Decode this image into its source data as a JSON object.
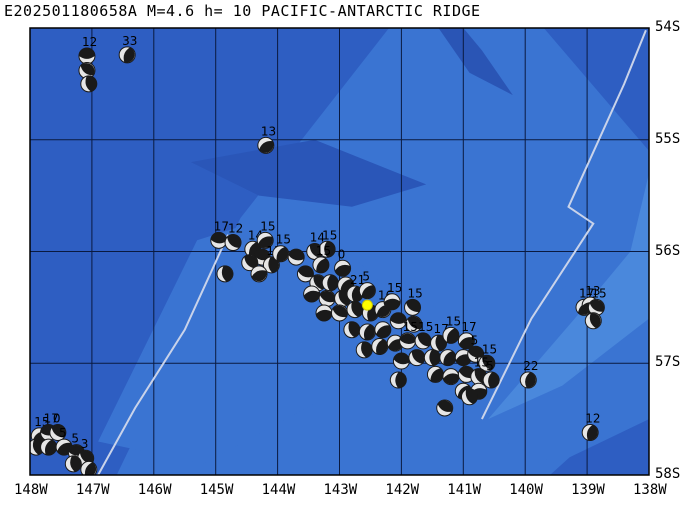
{
  "title": "E202501180658A M=4.6 h= 10 PACIFIC-ANTARCTIC RIDGE",
  "map": {
    "lon_range": [
      -148,
      -138
    ],
    "lat_range": [
      -58,
      -54
    ],
    "x_ticks": [
      "148W",
      "147W",
      "146W",
      "145W",
      "144W",
      "143W",
      "142W",
      "141W",
      "140W",
      "139W",
      "138W"
    ],
    "y_ticks": [
      "54S",
      "55S",
      "56S",
      "57S",
      "58S"
    ],
    "colors": {
      "deep_ocean": "#2e5ec2",
      "mid_ocean": "#3a74d2",
      "shallow_ridge": "#4a88dc",
      "grid": "#0a1a40",
      "plate_boundary": "#c9d3ea",
      "event_marker": "#ffff00",
      "mech_dark": "#1a1a1a",
      "mech_light": "#e6e6e6"
    },
    "event": {
      "lon": -142.55,
      "lat": -56.48,
      "label": "E202501180658A"
    },
    "mechanisms": [
      {
        "lon": -147.08,
        "lat": -54.25,
        "label": "12"
      },
      {
        "lon": -147.08,
        "lat": -54.38,
        "label": ""
      },
      {
        "lon": -147.05,
        "lat": -54.5,
        "label": ""
      },
      {
        "lon": -146.43,
        "lat": -54.24,
        "label": "33"
      },
      {
        "lon": -144.19,
        "lat": -55.05,
        "label": "13"
      },
      {
        "lon": -144.95,
        "lat": -55.9,
        "label": "17"
      },
      {
        "lon": -144.72,
        "lat": -55.92,
        "label": "12"
      },
      {
        "lon": -144.85,
        "lat": -56.2,
        "label": ""
      },
      {
        "lon": -144.4,
        "lat": -55.98,
        "label": "14"
      },
      {
        "lon": -144.2,
        "lat": -55.9,
        "label": "15"
      },
      {
        "lon": -144.25,
        "lat": -56.05,
        "label": ""
      },
      {
        "lon": -144.45,
        "lat": -56.1,
        "label": ""
      },
      {
        "lon": -144.1,
        "lat": -56.12,
        "label": "15"
      },
      {
        "lon": -143.95,
        "lat": -56.02,
        "label": "15"
      },
      {
        "lon": -144.3,
        "lat": -56.2,
        "label": ""
      },
      {
        "lon": -143.7,
        "lat": -56.05,
        "label": ""
      },
      {
        "lon": -143.4,
        "lat": -56.0,
        "label": "14"
      },
      {
        "lon": -143.2,
        "lat": -55.98,
        "label": "15"
      },
      {
        "lon": -143.3,
        "lat": -56.12,
        "label": "15"
      },
      {
        "lon": -142.95,
        "lat": -56.15,
        "label": "0"
      },
      {
        "lon": -143.55,
        "lat": -56.2,
        "label": ""
      },
      {
        "lon": -143.35,
        "lat": -56.28,
        "label": ""
      },
      {
        "lon": -143.15,
        "lat": -56.28,
        "label": ""
      },
      {
        "lon": -142.9,
        "lat": -56.3,
        "label": ""
      },
      {
        "lon": -143.45,
        "lat": -56.38,
        "label": ""
      },
      {
        "lon": -143.2,
        "lat": -56.42,
        "label": ""
      },
      {
        "lon": -142.95,
        "lat": -56.42,
        "label": ""
      },
      {
        "lon": -142.75,
        "lat": -56.38,
        "label": "21"
      },
      {
        "lon": -142.55,
        "lat": -56.35,
        "label": "5"
      },
      {
        "lon": -143.25,
        "lat": -56.55,
        "label": ""
      },
      {
        "lon": -143.0,
        "lat": -56.55,
        "label": ""
      },
      {
        "lon": -142.75,
        "lat": -56.52,
        "label": ""
      },
      {
        "lon": -142.5,
        "lat": -56.55,
        "label": ""
      },
      {
        "lon": -142.3,
        "lat": -56.52,
        "label": "16"
      },
      {
        "lon": -142.15,
        "lat": -56.45,
        "label": "15"
      },
      {
        "lon": -141.82,
        "lat": -56.5,
        "label": "15"
      },
      {
        "lon": -142.8,
        "lat": -56.7,
        "label": ""
      },
      {
        "lon": -142.55,
        "lat": -56.72,
        "label": ""
      },
      {
        "lon": -142.3,
        "lat": -56.7,
        "label": ""
      },
      {
        "lon": -142.05,
        "lat": -56.62,
        "label": ""
      },
      {
        "lon": -141.8,
        "lat": -56.65,
        "label": ""
      },
      {
        "lon": -142.6,
        "lat": -56.88,
        "label": ""
      },
      {
        "lon": -142.35,
        "lat": -56.85,
        "label": ""
      },
      {
        "lon": -142.1,
        "lat": -56.82,
        "label": ""
      },
      {
        "lon": -141.9,
        "lat": -56.8,
        "label": "15"
      },
      {
        "lon": -141.65,
        "lat": -56.8,
        "label": "15"
      },
      {
        "lon": -141.4,
        "lat": -56.82,
        "label": "17"
      },
      {
        "lon": -141.2,
        "lat": -56.75,
        "label": "15"
      },
      {
        "lon": -140.95,
        "lat": -56.8,
        "label": "17"
      },
      {
        "lon": -142.0,
        "lat": -56.98,
        "label": ""
      },
      {
        "lon": -141.75,
        "lat": -56.95,
        "label": ""
      },
      {
        "lon": -141.5,
        "lat": -56.95,
        "label": ""
      },
      {
        "lon": -141.25,
        "lat": -56.95,
        "label": ""
      },
      {
        "lon": -141.0,
        "lat": -56.95,
        "label": ""
      },
      {
        "lon": -140.8,
        "lat": -56.92,
        "label": "5"
      },
      {
        "lon": -140.62,
        "lat": -57.0,
        "label": "15"
      },
      {
        "lon": -142.05,
        "lat": -57.15,
        "label": ""
      },
      {
        "lon": -141.45,
        "lat": -57.1,
        "label": ""
      },
      {
        "lon": -141.2,
        "lat": -57.12,
        "label": ""
      },
      {
        "lon": -140.95,
        "lat": -57.1,
        "label": ""
      },
      {
        "lon": -140.75,
        "lat": -57.12,
        "label": "15"
      },
      {
        "lon": -140.55,
        "lat": -57.15,
        "label": "5"
      },
      {
        "lon": -141.0,
        "lat": -57.25,
        "label": ""
      },
      {
        "lon": -140.75,
        "lat": -57.25,
        "label": ""
      },
      {
        "lon": -141.3,
        "lat": -57.4,
        "label": ""
      },
      {
        "lon": -140.9,
        "lat": -57.3,
        "label": ""
      },
      {
        "lon": -139.95,
        "lat": -57.15,
        "label": "22"
      },
      {
        "lon": -139.05,
        "lat": -56.5,
        "label": "17"
      },
      {
        "lon": -138.95,
        "lat": -56.48,
        "label": "13"
      },
      {
        "lon": -138.85,
        "lat": -56.5,
        "label": "15"
      },
      {
        "lon": -138.9,
        "lat": -56.62,
        "label": ""
      },
      {
        "lon": -138.95,
        "lat": -57.62,
        "label": "12"
      },
      {
        "lon": -147.85,
        "lat": -57.65,
        "label": "15"
      },
      {
        "lon": -147.7,
        "lat": -57.62,
        "label": "17"
      },
      {
        "lon": -147.55,
        "lat": -57.62,
        "label": "0"
      },
      {
        "lon": -147.9,
        "lat": -57.75,
        "label": ""
      },
      {
        "lon": -147.7,
        "lat": -57.75,
        "label": ""
      },
      {
        "lon": -147.45,
        "lat": -57.75,
        "label": "5"
      },
      {
        "lon": -147.25,
        "lat": -57.8,
        "label": "5"
      },
      {
        "lon": -147.1,
        "lat": -57.85,
        "label": "3"
      },
      {
        "lon": -147.3,
        "lat": -57.9,
        "label": ""
      },
      {
        "lon": -147.05,
        "lat": -57.95,
        "label": ""
      }
    ]
  }
}
